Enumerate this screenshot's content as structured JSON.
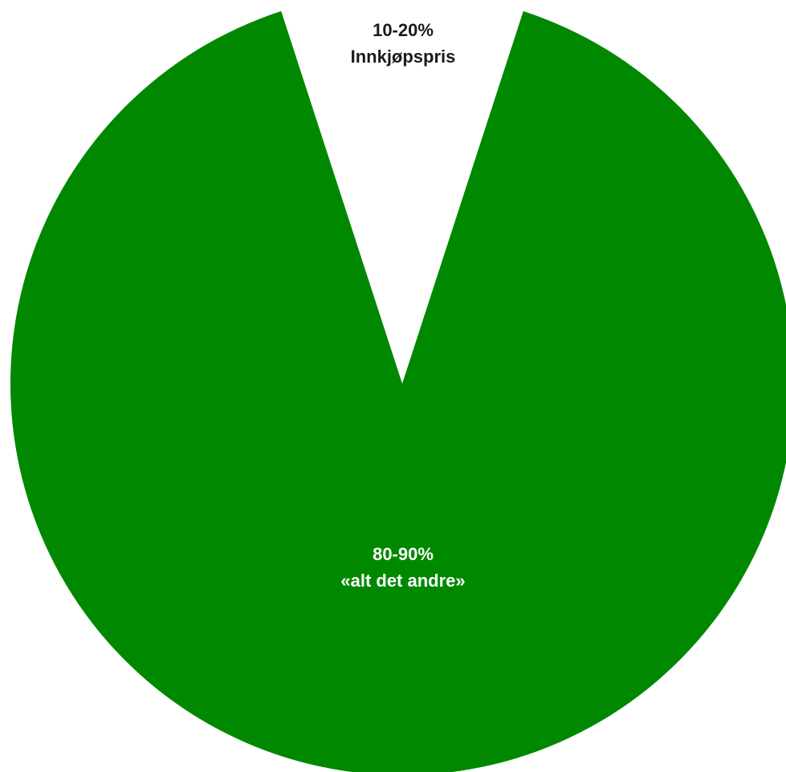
{
  "chart_data": {
    "type": "pie",
    "slices": [
      {
        "name": "Innkjøpspris",
        "value_range_label": "10-20%",
        "value_percent": 10,
        "label_lines": [
          "10-20%",
          "Innkjøpspris"
        ],
        "color": "#ffffff",
        "text_color": "#1a1a1a"
      },
      {
        "name": "«alt det andre»",
        "value_range_label": "80-90%",
        "value_percent": 90,
        "label_lines": [
          "80-90%",
          "«alt det andre»"
        ],
        "color": "#008800",
        "text_color": "#ffffff"
      }
    ],
    "title": "",
    "legend": "none",
    "start_angle_note": "white slice centered at top"
  }
}
